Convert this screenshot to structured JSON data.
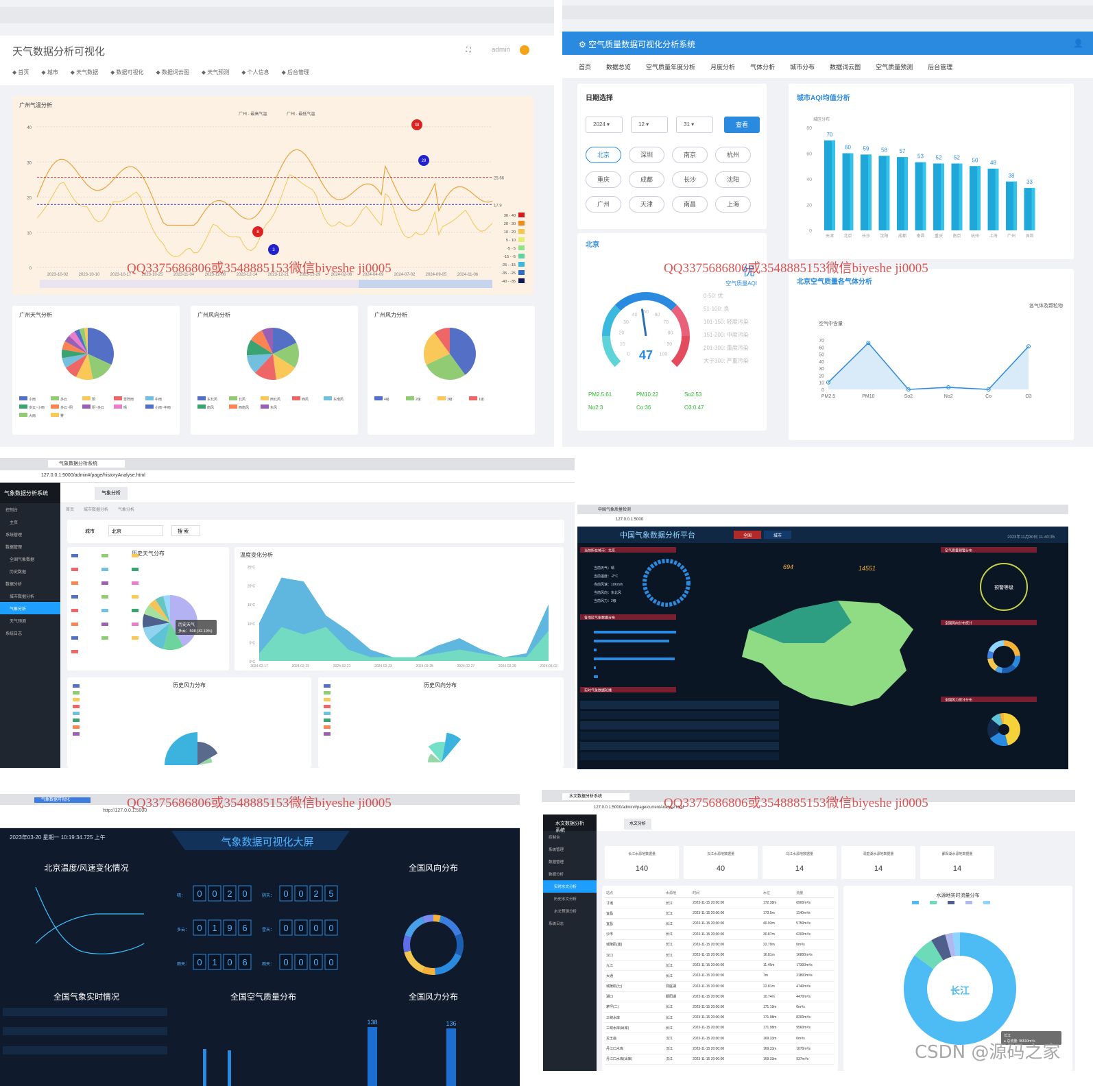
{
  "watermark": "QQ3375686806或3548885153微信biyeshe ji0005",
  "p1": {
    "title": "天气数据分析可视化",
    "user": "admin",
    "nav": [
      "首页",
      "城市",
      "天气数据",
      "数据可视化",
      "数据词云图",
      "天气预测",
      "个人信息",
      "后台管理"
    ],
    "line": {
      "title": "广州气温分析",
      "legend": [
        "广州 - 最高气温",
        "广州 - 最低气温"
      ],
      "markers": [
        "38",
        "8",
        "29",
        "3"
      ],
      "marklines": [
        "25.66",
        "17.9"
      ],
      "yticks": [
        "40",
        "30",
        "20",
        "10",
        "0"
      ],
      "xticks": [
        "2023-10-02",
        "2023-10-10",
        "2023-10-17",
        "2023-10-25",
        "2023-11-04",
        "2023-12-06",
        "2023-12-14",
        "2023-12-21",
        "2023-12-29",
        "2024-02-06",
        "2024-04-09",
        "2024-07-02",
        "2024-09-05",
        "2024-11-06"
      ],
      "vmap": [
        "30 - 40",
        "20 - 30",
        "10 - 20",
        "5 - 10",
        "-5 - 5",
        "-15 - -5",
        "-25 - -15",
        "-35 - -25",
        "-40 - -35"
      ],
      "vmapColors": [
        "#d7191c",
        "#f08c1e",
        "#f6c54a",
        "#e3ef70",
        "#8ee48b",
        "#5fd4a3",
        "#3bb8de",
        "#2c6fc2",
        "#121a54"
      ]
    },
    "pie1": {
      "title": "广州天气分析",
      "labels": [
        "小雨",
        "多云",
        "阴",
        "雷阵雨",
        "中雨",
        "多云~小雨",
        "多云~阴",
        "阴~多云",
        "晴",
        "小雨~中雨",
        "大雨",
        "雾"
      ]
    },
    "pie2": {
      "title": "广州风向分析",
      "labels": [
        "东北风",
        "北风",
        "西北风",
        "西风",
        "东南风",
        "南风",
        "西南风",
        "东风"
      ]
    },
    "pie3": {
      "title": "广州风力分析",
      "labels": [
        "4级",
        "2级",
        "3级",
        "1级"
      ]
    }
  },
  "p2": {
    "title": "空气质量数据可视化分析系统",
    "nav": [
      "首页",
      "数据总览",
      "空气质量年度分析",
      "月度分析",
      "气体分析",
      "城市分布",
      "数据词云图",
      "空气质量预测",
      "后台管理"
    ],
    "dateTitle": "日期选择",
    "sel": [
      "2024",
      "12",
      "31"
    ],
    "query": "查看",
    "cities": [
      "北京",
      "深圳",
      "南京",
      "杭州",
      "重庆",
      "成都",
      "长沙",
      "沈阳",
      "广州",
      "天津",
      "南昌",
      "上海"
    ],
    "bar": {
      "title": "城市AQI均值分析",
      "ylabel": "城区分布",
      "values": [
        70,
        60,
        59,
        58,
        57,
        53,
        52,
        52,
        50,
        48,
        38,
        33
      ],
      "categories": [
        "天津",
        "北京",
        "长沙",
        "沈阳",
        "成都",
        "南昌",
        "重庆",
        "南京",
        "杭州",
        "上海",
        "广州",
        "深圳"
      ],
      "yticks": [
        "80",
        "60",
        "40",
        "20",
        "0"
      ]
    },
    "gauge": {
      "city": "北京",
      "value": "47",
      "level": "优",
      "label": "空气质量AQI",
      "legend": [
        "0-50: 优",
        "51-100: 良",
        "101-150: 轻度污染",
        "151-200: 中度污染",
        "201-300: 重度污染",
        "大于300: 严重污染"
      ],
      "pollutants": [
        "PM2.5:61",
        "PM10:22",
        "So2:53",
        "No2:3",
        "Co:36",
        "O3:0.47"
      ]
    },
    "gas": {
      "title": "北京空气质量各气体分析",
      "legend": "各气体及颗粒物",
      "ylabel": "空气中含量",
      "categories": [
        "PM2.5",
        "PM10",
        "So2",
        "No2",
        "Co",
        "O3"
      ],
      "values": [
        10,
        66,
        0,
        3,
        0,
        61
      ],
      "yticks": [
        "70",
        "60",
        "50",
        "40",
        "30",
        "20",
        "10",
        "0"
      ]
    }
  },
  "p3": {
    "tab": "气象数据分析系统",
    "url": "127.0.0.1:5000/admin#/page/historyAnalyse.html",
    "brand": "气象数据分析系统",
    "side": [
      "控制台",
      "主页",
      "系统管理",
      "数据管理",
      "全国气象数据",
      "历史数据",
      "数据分析",
      "城市数据分析",
      "气象分析",
      "天气预测",
      "系统日志"
    ],
    "topTab": "气象分析",
    "crumbs": [
      "首页",
      "城市数据分析",
      "气象分析"
    ],
    "cityLabel": "城市",
    "city": "北京",
    "search": "搜 索",
    "pieTitle": "历史天气分布",
    "tooltip": "历史天气",
    "tooltip2": "多云：508 (42.19%)",
    "areaTitle": "温度变化分析",
    "areaX": [
      "2024-02-17",
      "2024-02-19",
      "2024-02-21",
      "2024-02-23",
      "2024-02-25",
      "2024-02-27",
      "2024-02-29",
      "2024-03-02"
    ],
    "areaY": [
      "25°C",
      "20°C",
      "15°C",
      "10°C",
      "5°C",
      "0°C"
    ],
    "windTitle": "历史风力分布",
    "dirTitle": "历史风向分布"
  },
  "p4": {
    "tab": "中国气象质量检测",
    "url": "127.0.0.1:5000",
    "title": "中国气象数据分析平台",
    "time": "2023年11月30日 11:40:35",
    "stat1": "694",
    "stat2": "14551",
    "b1": "全国",
    "b2": "城市",
    "sec": [
      "当前所在城市：北京",
      "各地区气象数据分布",
      "实时气象数据轮播",
      "空气质量预警分布",
      "全国风向分布统计",
      "全国风力统计分布"
    ],
    "city": [
      "当前天气：晴",
      "当前温度：-2°C",
      "当前风速：10Km/h",
      "当前风向：东北风",
      "当前风力：2级"
    ],
    "ring": "预警等级"
  },
  "p5": {
    "tab": "气象数据可视化",
    "url": "http://127.0.0.1:5000",
    "time": "2023年03-20 星期一 10:19:34.725 上午",
    "title": "气象数据可视化大屏",
    "t1": "北京温度/风速变化情况",
    "t2": "全国风向分布",
    "t3": "全国气象实时情况",
    "t4": "全国空气质量分布",
    "t5": "全国风力分布",
    "counters": [
      {
        "l": "晴：",
        "v": [
          "0",
          "0",
          "2",
          "0"
        ],
        "l2": "阴天：",
        "v2": [
          "0",
          "0",
          "2",
          "5"
        ]
      },
      {
        "l": "多云：",
        "v": [
          "0",
          "1",
          "9",
          "6"
        ],
        "l2": "雪天：",
        "v2": [
          "0",
          "0",
          "0",
          "0"
        ]
      },
      {
        "l": "雨天：",
        "v": [
          "0",
          "1",
          "0",
          "6"
        ],
        "l2": "雨天：",
        "v2": [
          "0",
          "0",
          "0",
          "0"
        ]
      }
    ],
    "b1": "138",
    "b2": "136"
  },
  "p6": {
    "tab": "水文数据分析系统",
    "url": "127.0.0.1:5000/admin#/page/currentAnalyse.html",
    "brand": "水文数据分析系统",
    "side": [
      "控制台",
      "系统管理",
      "数据管理",
      "数据分析",
      "实时水文分析",
      "历史水文分析",
      "水文预测分析",
      "系统日志"
    ],
    "topTab": "水文分析",
    "cards": [
      {
        "l": "长江水源地数据量",
        "v": "140"
      },
      {
        "l": "汉江水源地数据量",
        "v": "40"
      },
      {
        "l": "乌江水源地数据量",
        "v": "14"
      },
      {
        "l": "洞庭湖水源地数据量",
        "v": "14"
      },
      {
        "l": "鄱阳湖水源地数据量",
        "v": "14"
      }
    ],
    "cols": [
      "站点",
      "水源地",
      "时间",
      "水位",
      "流量"
    ],
    "rows": [
      [
        "寸滩",
        "长江",
        "2023-11-15 20:00:00",
        "172.38m",
        "6900m³/s"
      ],
      [
        "宜昌",
        "长江",
        "2023-11-15 20:00:00",
        "173.5m",
        "1140m³/s"
      ],
      [
        "宜昌",
        "长江",
        "2023-11-15 20:00:00",
        "40.93m",
        "5750m³/s"
      ],
      [
        "沙市",
        "长江",
        "2023-11-15 20:00:00",
        "30.87m",
        "6200m³/s"
      ],
      [
        "城陵矶(莲)",
        "长江",
        "2023-11-15 20:00:00",
        "22.79m",
        "0m³/s"
      ],
      [
        "汉口",
        "长江",
        "2023-11-15 20:00:00",
        "16.81m",
        "16800m³/s"
      ],
      [
        "九江",
        "长江",
        "2023-11-15 20:00:00",
        "11.45m",
        "17300m³/s"
      ],
      [
        "大通",
        "长江",
        "2023-11-15 20:00:00",
        "7m",
        "21800m³/s"
      ],
      [
        "城陵矶(七)",
        "洞庭湖",
        "2023-11-15 20:00:00",
        "22.81m",
        "4740m³/s"
      ],
      [
        "湖口",
        "鄱阳湖",
        "2023-11-15 20:00:00",
        "10.74m",
        "4470m³/s"
      ],
      [
        "茅坪(二)",
        "长江",
        "2023-11-15 20:00:00",
        "171.19m",
        "0m³/s"
      ],
      [
        "三峡水库",
        "长江",
        "2023-11-15 20:00:00",
        "171.98m",
        "8200m³/s"
      ],
      [
        "三峡水库(出库)",
        "长江",
        "2023-11-15 20:00:00",
        "171.98m",
        "9560m³/s"
      ],
      [
        "龙王庙",
        "汉江",
        "2023-11-15 20:00:00",
        "169.33m",
        "0m³/s"
      ],
      [
        "丹江口水库",
        "汉江",
        "2023-11-15 20:00:00",
        "169.33m",
        "1070m³/s"
      ],
      [
        "丹江口水库(出库)",
        "汉江",
        "2023-11-15 20:00:00",
        "169.33m",
        "937m³/s"
      ]
    ],
    "donutTitle": "水源地实时流量分布",
    "donutCenter": "长江",
    "tip1": "长江",
    "tip2": "● 总流量: 96510m³/s"
  },
  "csdn": "CSDN @源码之家"
}
